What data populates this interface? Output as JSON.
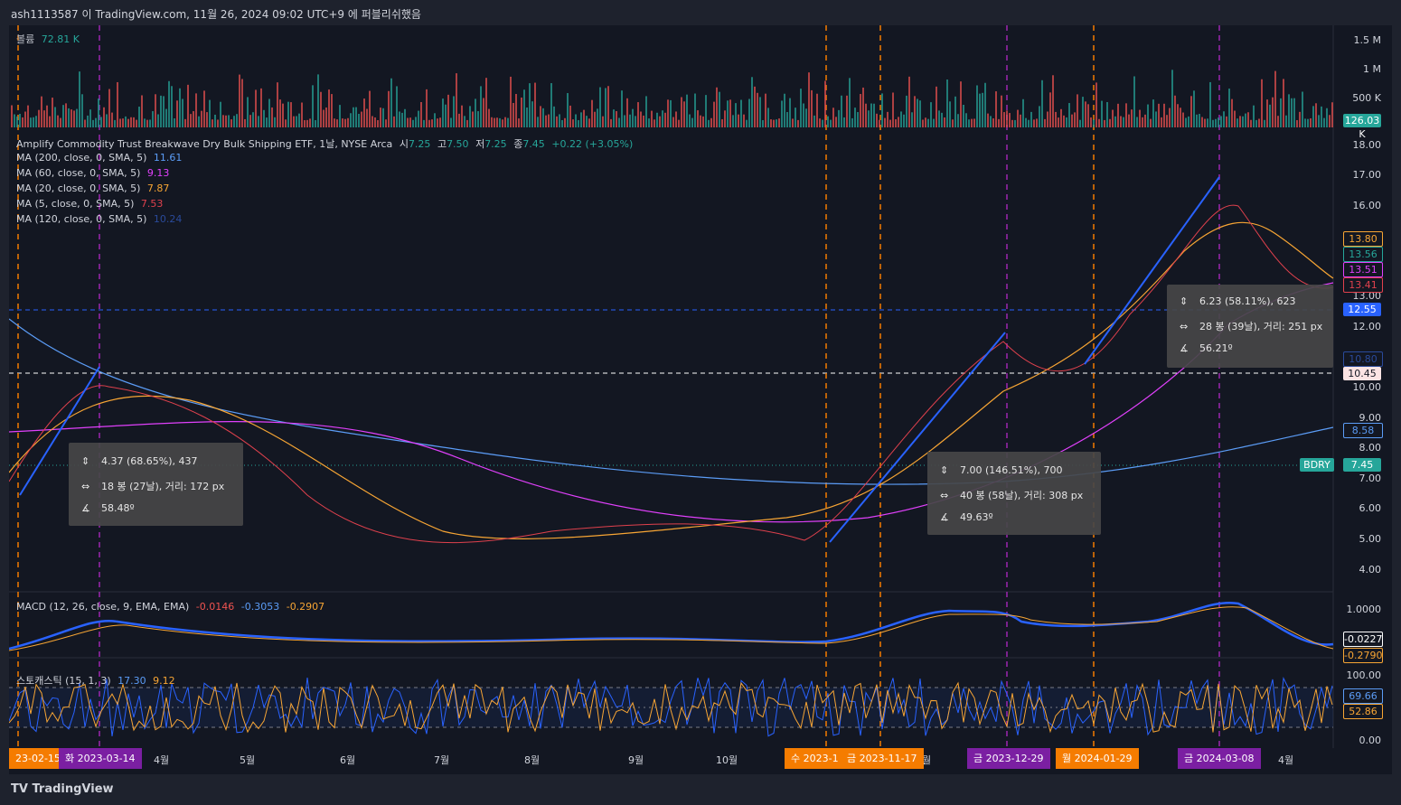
{
  "header": {
    "publish_line": "ash1113587 이 TradingView.com, 11월 26, 2024 09:02 UTC+9 에 퍼블리쉬했음"
  },
  "volume_legend": {
    "name": "볼륨",
    "value": "72.81 K"
  },
  "symbol_legend": {
    "title": "Amplify Commodity Trust Breakwave Dry Bulk Shipping ETF, 1날, NYSE Arca",
    "o_label": "시",
    "o": "7.25",
    "h_label": "고",
    "h": "7.50",
    "l_label": "저",
    "l": "7.25",
    "c_label": "종",
    "c": "7.45",
    "change": "+0.22 (+3.05%)"
  },
  "ma_legends": [
    {
      "label": "MA (200, close, 0, SMA, 5)",
      "value": "11.61",
      "color": "#5b9cf6"
    },
    {
      "label": "MA (60, close, 0, SMA, 5)",
      "value": "9.13",
      "color": "#e040fb"
    },
    {
      "label": "MA (20, close, 0, SMA, 5)",
      "value": "7.87",
      "color": "#f7a534"
    },
    {
      "label": "MA (5, close, 0, SMA, 5)",
      "value": "7.53",
      "color": "#e0414d"
    },
    {
      "label": "MA (120, close, 0, SMA, 5)",
      "value": "10.24",
      "color": "#2a4a9a"
    }
  ],
  "volume_axis": [
    "1.5 M",
    "1 M",
    "500 K"
  ],
  "volume_tag": "126.03 K",
  "price_axis": [
    "18.00",
    "17.00",
    "16.00",
    "13.00",
    "12.00",
    "10.00",
    "9.00",
    "8.00",
    "7.00",
    "6.00",
    "5.00",
    "4.00"
  ],
  "price_tags": [
    {
      "text": "13.80",
      "bg": "#131722",
      "fg": "#f7a534",
      "border": "#f7a534"
    },
    {
      "text": "13.56",
      "bg": "#131722",
      "fg": "#26a69a",
      "border": "#26a69a"
    },
    {
      "text": "13.51",
      "bg": "#131722",
      "fg": "#e040fb",
      "border": "#e040fb"
    },
    {
      "text": "13.41",
      "bg": "#131722",
      "fg": "#e0414d",
      "border": "#e0414d"
    },
    {
      "text": "12.55",
      "bg": "#2962ff",
      "fg": "#ffffff",
      "border": "#2962ff"
    },
    {
      "text": "10.80",
      "bg": "#131722",
      "fg": "#2a4a9a",
      "border": "#2a4a9a"
    },
    {
      "text": "10.45",
      "bg": "#fce4e4",
      "fg": "#131722",
      "border": "#fce4e4"
    },
    {
      "text": "8.58",
      "bg": "#131722",
      "fg": "#5b9cf6",
      "border": "#5b9cf6"
    },
    {
      "text": "7.45",
      "bg": "#26a69a",
      "fg": "#ffffff",
      "border": "#26a69a"
    }
  ],
  "ticker_tag": "BDRY",
  "measures": [
    {
      "price": "4.37 (68.65%), 437",
      "bars": "18 봉 (27날), 거리: 172 px",
      "angle": "58.48º"
    },
    {
      "price": "7.00 (146.51%), 700",
      "bars": "40 봉 (58날), 거리: 308 px",
      "angle": "49.63º"
    },
    {
      "price": "6.23 (58.11%), 623",
      "bars": "28 봉 (39날), 거리: 251 px",
      "angle": "56.21º"
    }
  ],
  "macd": {
    "label": "MACD (12, 26, close, 9, EMA, EMA)",
    "v1": "-0.0146",
    "v2": "-0.3053",
    "v3": "-0.2907",
    "axis": "1.0000",
    "tags": [
      {
        "text": "-0.0227",
        "bg": "#131722",
        "fg": "#ffffff",
        "border": "#ffffff"
      },
      {
        "text": "-0.2790",
        "bg": "#131722",
        "fg": "#f7a534",
        "border": "#f7a534"
      }
    ]
  },
  "stoch": {
    "label": "스토캐스틱 (15, 1, 3)",
    "v1": "17.30",
    "v2": "9.12",
    "axis": [
      "100.00",
      "0.00"
    ],
    "tags": [
      {
        "text": "69.66",
        "bg": "#131722",
        "fg": "#5b9cf6",
        "border": "#5b9cf6"
      },
      {
        "text": "52.86",
        "bg": "#131722",
        "fg": "#f7a534",
        "border": "#f7a534"
      }
    ]
  },
  "time_axis": [
    "4월",
    "5월",
    "6월",
    "7월",
    "8월",
    "9월",
    "10월",
    "월",
    "4월"
  ],
  "time_tags": [
    {
      "text": "23-02-15",
      "bg": "#f57c00"
    },
    {
      "text": "화 2023-03-14",
      "bg": "#7b1fa2"
    },
    {
      "text": "수 2023-1",
      "bg": "#f57c00"
    },
    {
      "text": "금 2023-11-17",
      "bg": "#f57c00"
    },
    {
      "text": "금 2023-12-29",
      "bg": "#7b1fa2"
    },
    {
      "text": "월 2024-01-29",
      "bg": "#f57c00"
    },
    {
      "text": "금 2024-03-08",
      "bg": "#7b1fa2"
    }
  ],
  "footer": {
    "brand": "TradingView"
  }
}
